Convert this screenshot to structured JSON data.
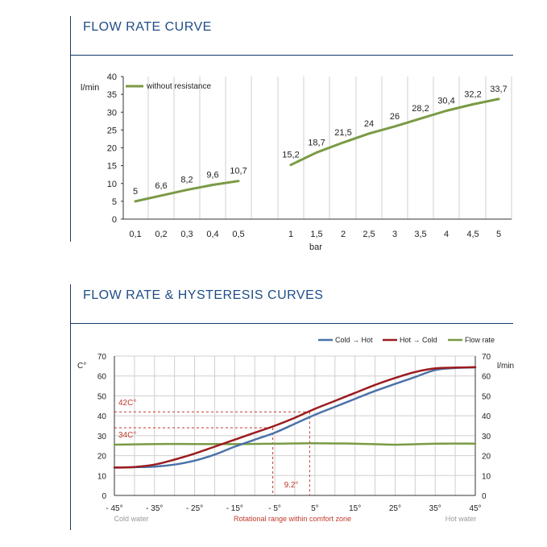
{
  "section1": {
    "title": "FLOW RATE CURVE"
  },
  "section2": {
    "title": "FLOW RATE & HYSTERESIS CURVES"
  },
  "colors": {
    "green": "#7a9a45",
    "blue": "#4a72a8",
    "red": "#9b1b1f",
    "title_blue": "#1f4d86",
    "ref_red": "#c0392b",
    "side_gray": "#9a9a9a",
    "grid": "#cfcfcf"
  },
  "chart_data": [
    {
      "type": "line",
      "title": "FLOW RATE CURVE",
      "xlabel": "bar",
      "ylabel": "l/min",
      "ylim": [
        0,
        40
      ],
      "yticks": [
        "0",
        "5",
        "10",
        "15",
        "20",
        "25",
        "30",
        "35",
        "40"
      ],
      "legend": "top-left",
      "grid": "vertical",
      "x_ticks": [
        "0,1",
        "0,2",
        "0,3",
        "0,4",
        "0,5",
        "1",
        "1,5",
        "2",
        "2,5",
        "3",
        "3,5",
        "4",
        "4,5",
        "5"
      ],
      "series": [
        {
          "name": "without resistance",
          "color": "#7a9a45",
          "segments": [
            {
              "x": [
                "0,1",
                "0,2",
                "0,3",
                "0,4",
                "0,5"
              ],
              "y": [
                5,
                6.6,
                8.2,
                9.6,
                10.7
              ],
              "labels": [
                "5",
                "6,6",
                "8,2",
                "9,6",
                "10,7"
              ]
            },
            {
              "x": [
                "1",
                "1,5",
                "2",
                "2,5",
                "3",
                "3,5",
                "4",
                "4,5",
                "5"
              ],
              "y": [
                15.2,
                18.7,
                21.5,
                24,
                26,
                28.2,
                30.4,
                32.2,
                33.7
              ],
              "labels": [
                "15,2",
                "18,7",
                "21,5",
                "24",
                "26",
                "28,2",
                "30,4",
                "32,2",
                "33,7"
              ]
            }
          ]
        }
      ]
    },
    {
      "type": "line",
      "title": "FLOW RATE & HYSTERESIS CURVES",
      "ylabel_left": "C°",
      "ylabel_right": "l/min",
      "ylim": [
        0,
        70
      ],
      "yticks": [
        "0",
        "10",
        "20",
        "30",
        "40",
        "50",
        "60",
        "70"
      ],
      "grid": "both",
      "legend": "top-right",
      "x_ticks": [
        "- 45°",
        "- 35°",
        "- 25°",
        "- 15°",
        "- 5°",
        "5°",
        "15°",
        "25°",
        "35°",
        "45°"
      ],
      "x_values": [
        -45,
        -35,
        -25,
        -15,
        -5,
        5,
        15,
        25,
        35,
        45
      ],
      "x_side_labels": {
        "left": "Cold water",
        "center": "Rotational range within comfort zone",
        "right": "Hot water"
      },
      "reference": {
        "labels": [
          "42C°",
          "34C°",
          "9.2°"
        ],
        "y_values": [
          42,
          34
        ],
        "x_values": [
          -5.5,
          3.7
        ]
      },
      "series": [
        {
          "name": "Cold → Hot",
          "color": "#4a72a8",
          "x": [
            -45,
            -40,
            -35,
            -30,
            -25,
            -20,
            -15,
            -10,
            -5,
            0,
            5,
            10,
            15,
            20,
            25,
            30,
            35,
            40,
            45
          ],
          "y": [
            14,
            14.2,
            14.5,
            15.5,
            17.5,
            20.5,
            24.5,
            28,
            31.5,
            36,
            40.5,
            44.5,
            48.5,
            52.5,
            56,
            59.5,
            63,
            64,
            64.3
          ]
        },
        {
          "name": "Hot → Cold",
          "color": "#9b1b1f",
          "x": [
            -45,
            -40,
            -35,
            -30,
            -25,
            -20,
            -15,
            -10,
            -5,
            0,
            5,
            10,
            15,
            20,
            25,
            30,
            35,
            40,
            45
          ],
          "y": [
            14,
            14.3,
            15.5,
            18,
            21,
            24.5,
            28,
            31.5,
            35,
            39,
            43.5,
            47.5,
            51.5,
            55.5,
            59,
            62,
            63.8,
            64.2,
            64.4
          ]
        },
        {
          "name": "Flow rate",
          "color": "#7a9a45",
          "x": [
            -45,
            -35,
            -25,
            -15,
            -5,
            5,
            15,
            25,
            35,
            45
          ],
          "y": [
            25.5,
            25.8,
            25.8,
            25.8,
            26,
            26.2,
            26,
            25.5,
            26,
            26
          ]
        }
      ]
    }
  ]
}
